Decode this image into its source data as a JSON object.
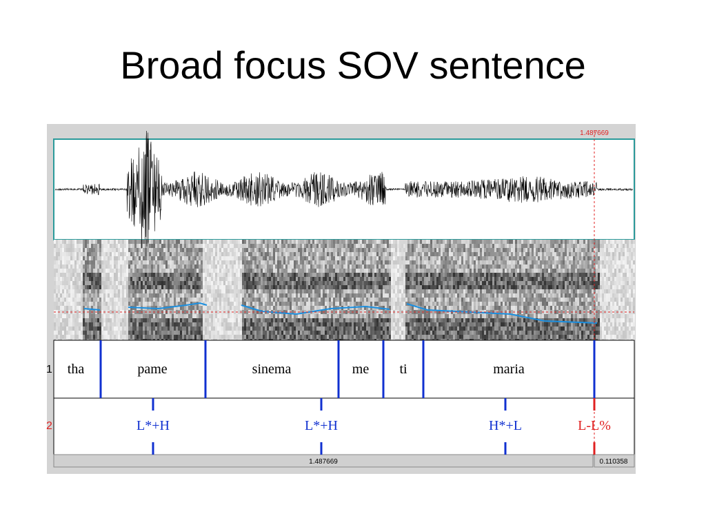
{
  "title": "Broad focus SOV sentence",
  "praat": {
    "cursor_time": "1.487669",
    "selection_time": "1.487669",
    "right_time": "0.110358",
    "tiers": [
      {
        "number": "1",
        "labels": [
          "tha",
          "pame",
          "sinema",
          "me",
          "ti",
          "maria"
        ]
      },
      {
        "number": "2",
        "labels": [
          "L*+H",
          "L*+H",
          "H*+L",
          "L-L%"
        ]
      }
    ]
  }
}
